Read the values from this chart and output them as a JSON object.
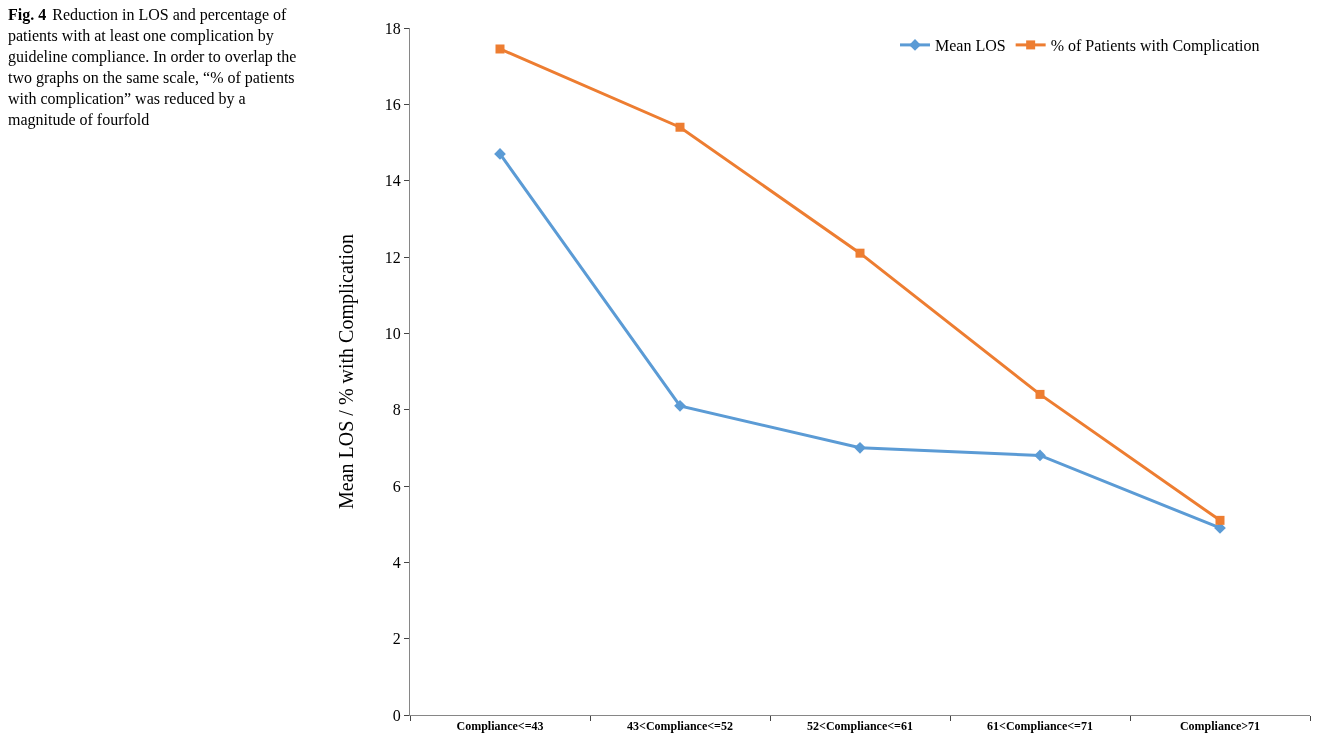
{
  "chart_data": {
    "type": "line",
    "title": "Fig. 4",
    "subtitle": "Reduction in LOS and percentage of patients with at least one complication by guideline compliance. In order to overlap the two graphs on the same scale, “% of patients with complication” was reduced by a magnitude of fourfold",
    "ylabel": "Mean LOS / % with Complication",
    "categories": [
      "Compliance<=43",
      "43<Compliance<=52",
      "52<Compliance<=61",
      "61<Compliance<=71",
      "Compliance>71"
    ],
    "series": [
      {
        "name": "Mean LOS",
        "color": "#5b9bd5",
        "marker": "diamond",
        "values": [
          14.7,
          8.1,
          7.0,
          6.8,
          4.9
        ]
      },
      {
        "name": "% of Patients with Complication",
        "color": "#ed7d31",
        "marker": "square",
        "values": [
          17.45,
          15.4,
          12.1,
          8.4,
          5.1
        ]
      }
    ],
    "ylim": [
      0,
      18
    ],
    "yticks": [
      0,
      2,
      4,
      6,
      8,
      10,
      12,
      14,
      16,
      18
    ],
    "grid": false,
    "legend": "top right",
    "line_style": "solid"
  }
}
